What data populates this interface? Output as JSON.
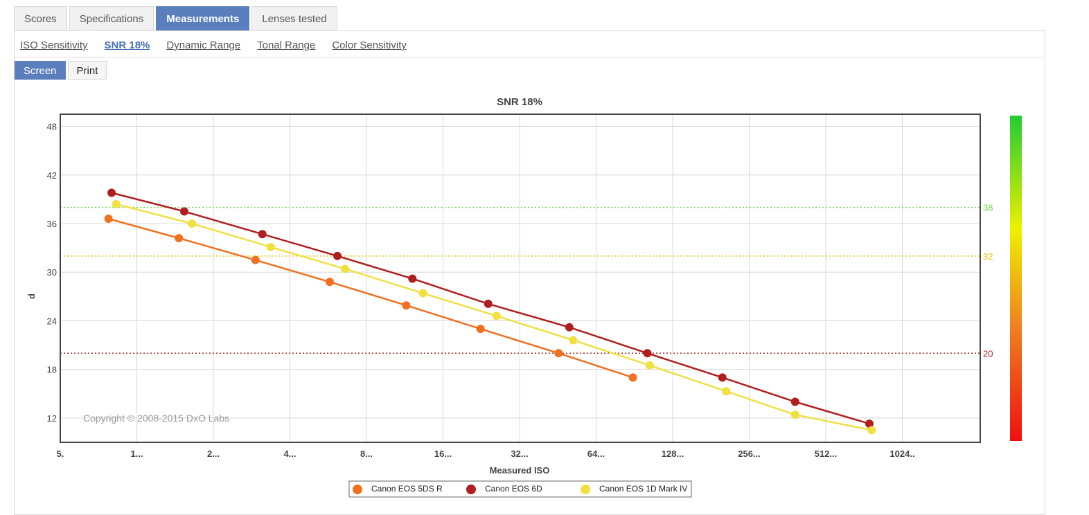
{
  "tabs": [
    "Scores",
    "Specifications",
    "Measurements",
    "Lenses tested"
  ],
  "subnav": [
    "ISO Sensitivity",
    "SNR 18%",
    "Dynamic Range",
    "Tonal Range",
    "Color Sensitivity"
  ],
  "modes": [
    "Screen",
    "Print"
  ],
  "colors": {
    "accent": "#5b7fbd"
  },
  "chart_data": {
    "type": "line",
    "title": "SNR 18%",
    "xlabel": "Measured ISO",
    "ylabel": "d",
    "x_log2": true,
    "x_ticks": [
      "5.",
      "1...",
      "2...",
      "4...",
      "8...",
      "16...",
      "32...",
      "64...",
      "128...",
      "256...",
      "512...",
      "1024.."
    ],
    "ylim": [
      9,
      49.5
    ],
    "y_ticks": [
      12,
      18,
      24,
      30,
      36,
      42,
      48
    ],
    "grid": true,
    "legend": "bottom",
    "reference_lines": [
      {
        "value": 38,
        "label": "38",
        "color": "#66dd44"
      },
      {
        "value": 32,
        "label": "32",
        "color": "#f0c000"
      },
      {
        "value": 20,
        "label": "20",
        "color": "#aa2222"
      }
    ],
    "series": [
      {
        "name": "Canon EOS 5DS R",
        "color": "#f07020",
        "x_pos": [
          0.63,
          1.55,
          2.55,
          3.52,
          4.52,
          5.49,
          6.51,
          7.48
        ],
        "values": [
          36.6,
          34.2,
          31.5,
          28.8,
          25.9,
          23.0,
          20.0,
          17.0
        ]
      },
      {
        "name": "Canon EOS 6D",
        "color": "#b01e1e",
        "x_pos": [
          0.67,
          1.62,
          2.64,
          3.62,
          4.6,
          5.59,
          6.65,
          7.67,
          8.65,
          9.6,
          10.57
        ],
        "values": [
          39.8,
          37.5,
          34.7,
          32.0,
          29.2,
          26.1,
          23.2,
          20.0,
          17.0,
          14.0,
          11.3
        ]
      },
      {
        "name": "Canon EOS 1D Mark IV",
        "color": "#f0e040",
        "x_pos": [
          0.73,
          1.72,
          2.75,
          3.72,
          4.74,
          5.7,
          6.7,
          7.7,
          8.7,
          9.6,
          10.6
        ],
        "values": [
          38.4,
          36.0,
          33.1,
          30.4,
          27.4,
          24.6,
          21.6,
          18.5,
          15.3,
          12.4,
          10.5
        ]
      }
    ],
    "colorbar": {
      "stops": [
        "#22cc33",
        "#eef000",
        "#f08020",
        "#ee1010"
      ]
    },
    "copyright": "Copyright © 2008-2015 DxO Labs"
  }
}
